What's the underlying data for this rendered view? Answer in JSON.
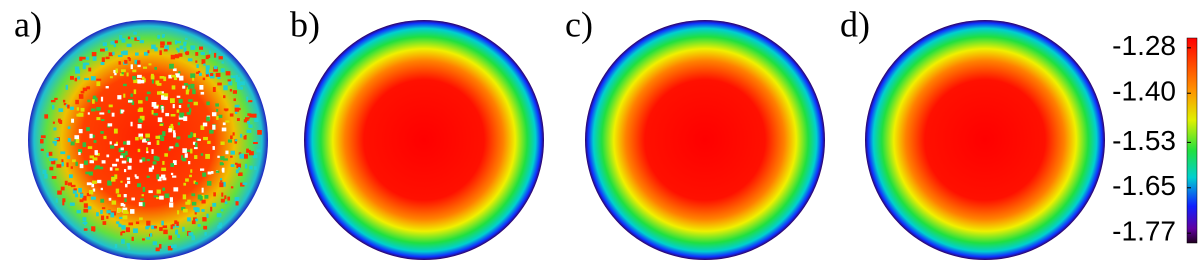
{
  "chart_data": {
    "type": "disk-maps",
    "panels": [
      {
        "label": "a)"
      },
      {
        "label": "b)"
      },
      {
        "label": "c)"
      },
      {
        "label": "d)"
      }
    ],
    "colorbar": {
      "ylim": [
        -1.796,
        -1.254
      ],
      "yticks": [
        -1.28,
        {
          "value": -1.4,
          "label": "-1.40"
        },
        -1.53,
        -1.65,
        -1.77
      ]
    }
  }
}
